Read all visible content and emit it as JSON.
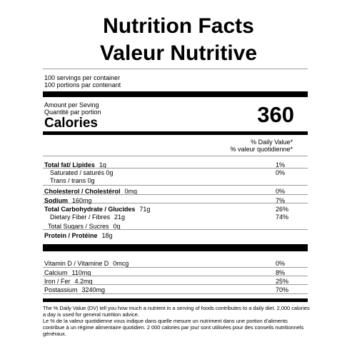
{
  "header": {
    "title_en": "Nutrition Facts",
    "title_fr": "Valeur Nutritive"
  },
  "servings": {
    "en": "100 servings per container",
    "fr": "100 portions par contenant"
  },
  "amount": {
    "en": "Amount per Seving",
    "fr": "Quantité par portion"
  },
  "calories": {
    "label": "Calories",
    "value": "360"
  },
  "daily_value_header": {
    "en": "% Daily Value*",
    "fr": "% valeur quotidienne*"
  },
  "nutrients": [
    {
      "label": "Total fat/ Lipides",
      "amount": "1g",
      "percent": "1%",
      "bold": true,
      "indent": 0
    },
    {
      "label": "Saturated / saturés 0g",
      "amount": "",
      "percent": "0%",
      "bold": false,
      "indent": 1
    },
    {
      "label": "Trans / trans 0g",
      "amount": "",
      "percent": "",
      "bold": false,
      "indent": 1
    },
    {
      "label": "Cholesterol / Cholestérol",
      "amount": "0mg",
      "percent": "0%",
      "bold": true,
      "indent": 0
    },
    {
      "label": "Sodium",
      "amount": "160mg",
      "percent": "7%",
      "bold": true,
      "indent": 0
    },
    {
      "label": "Total Carbohydrate / Glucides",
      "amount": "71g",
      "percent": "26%",
      "bold": true,
      "indent": 0
    },
    {
      "label": "Dietary Fiber / Fibres",
      "amount": "21g",
      "percent": "74%",
      "bold": false,
      "indent": 1
    },
    {
      "label": "Total Sugars / Sucres",
      "amount": "0g",
      "percent": "",
      "bold": false,
      "indent": 2
    },
    {
      "label": "Protein / Protéine",
      "amount": "18g",
      "percent": "",
      "bold": true,
      "indent": 0
    }
  ],
  "vitamins": [
    {
      "label": "Vitamin D / Vitamine D",
      "amount": "0mcg",
      "percent": "0%"
    },
    {
      "label": "Calcium",
      "amount": "110mg",
      "percent": "8%"
    },
    {
      "label": "Iron / Fer",
      "amount": "4.2mg",
      "percent": "25%"
    },
    {
      "label": "Postassium",
      "amount": "3240mg",
      "percent": "70%"
    }
  ],
  "footnote": {
    "en": "The % Daily Value (DV) tell you how much a nutrient in a serving of foods contributes to a daily diet. 2,000 calories a day is used for general nutrition advice.",
    "fr": "Le % de la valeur quotidienne vous indique dans quelle mesure un nutriment dans une portion d'aliments contribue à un régime alimentaire quotidien. 2 000 calories par jour sont utilisées pour des conseils nutritionnels généraux."
  }
}
